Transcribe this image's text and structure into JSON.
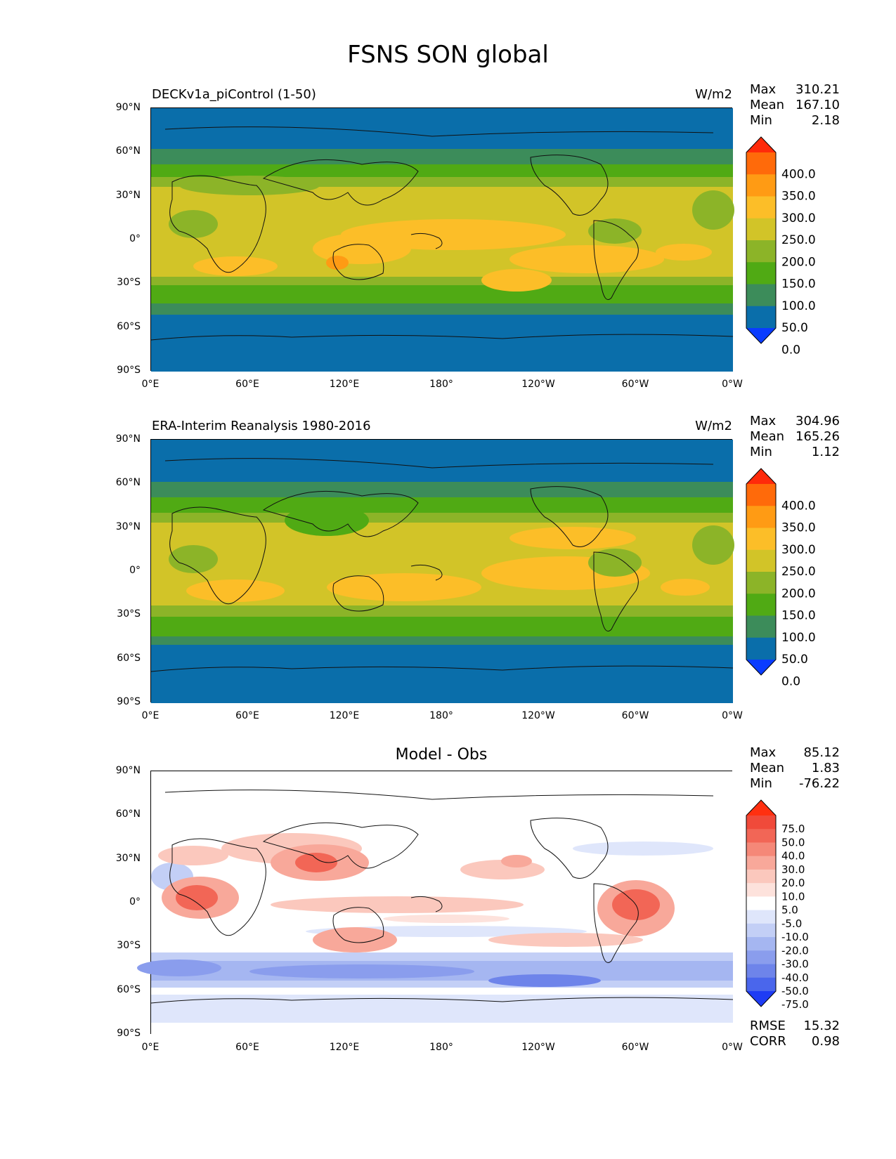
{
  "figure_title": "FSNS SON global",
  "axis_ticks": {
    "lat": [
      "90°N",
      "60°N",
      "30°N",
      "0°",
      "30°S",
      "60°S",
      "90°S"
    ],
    "lon": [
      "0°E",
      "60°E",
      "120°E",
      "180°",
      "120°W",
      "60°W",
      "0°W"
    ]
  },
  "panels": [
    {
      "title": "DECKv1a_piControl (1-50)",
      "units": "W/m2",
      "stats": {
        "max_label": "Max",
        "max": "310.21",
        "mean_label": "Mean",
        "mean": "167.10",
        "min_label": "Min",
        "min": "2.18"
      },
      "colorbar": {
        "labels": [
          "400.0",
          "350.0",
          "300.0",
          "250.0",
          "200.0",
          "150.0",
          "100.0",
          "50.0",
          "0.0"
        ],
        "colors": [
          "#ff2a0a",
          "#ff6a0a",
          "#ff9b14",
          "#fcbe28",
          "#d2c428",
          "#8cb428",
          "#50aa14",
          "#3c8c5a",
          "#0a6eaa",
          "#0a3cff"
        ]
      }
    },
    {
      "title": "ERA-Interim Reanalysis 1980-2016",
      "units": "W/m2",
      "stats": {
        "max_label": "Max",
        "max": "304.96",
        "mean_label": "Mean",
        "mean": "165.26",
        "min_label": "Min",
        "min": "1.12"
      },
      "colorbar": {
        "labels": [
          "400.0",
          "350.0",
          "300.0",
          "250.0",
          "200.0",
          "150.0",
          "100.0",
          "50.0",
          "0.0"
        ],
        "colors": [
          "#ff2a0a",
          "#ff6a0a",
          "#ff9b14",
          "#fcbe28",
          "#d2c428",
          "#8cb428",
          "#50aa14",
          "#3c8c5a",
          "#0a6eaa",
          "#0a3cff"
        ]
      }
    },
    {
      "title": "Model - Obs",
      "units": "",
      "stats": {
        "max_label": "Max",
        "max": "85.12",
        "mean_label": "Mean",
        "mean": "1.83",
        "min_label": "Min",
        "min": "-76.22",
        "rmse_label": "RMSE",
        "rmse": "15.32",
        "corr_label": "CORR",
        "corr": "0.98"
      },
      "colorbar": {
        "labels": [
          "75.0",
          "50.0",
          "40.0",
          "30.0",
          "20.0",
          "10.0",
          "5.0",
          "-5.0",
          "-10.0",
          "-20.0",
          "-30.0",
          "-40.0",
          "-50.0",
          "-75.0"
        ],
        "colors": [
          "#ff3010",
          "#f04a3a",
          "#f26656",
          "#f58878",
          "#f8a89a",
          "#fbc8bd",
          "#fde2dc",
          "#ffffff",
          "#dfe6fb",
          "#c3cff6",
          "#a5b6f1",
          "#8a9ded",
          "#6e84ea",
          "#4a66ec",
          "#1e3cf4"
        ]
      }
    }
  ]
}
